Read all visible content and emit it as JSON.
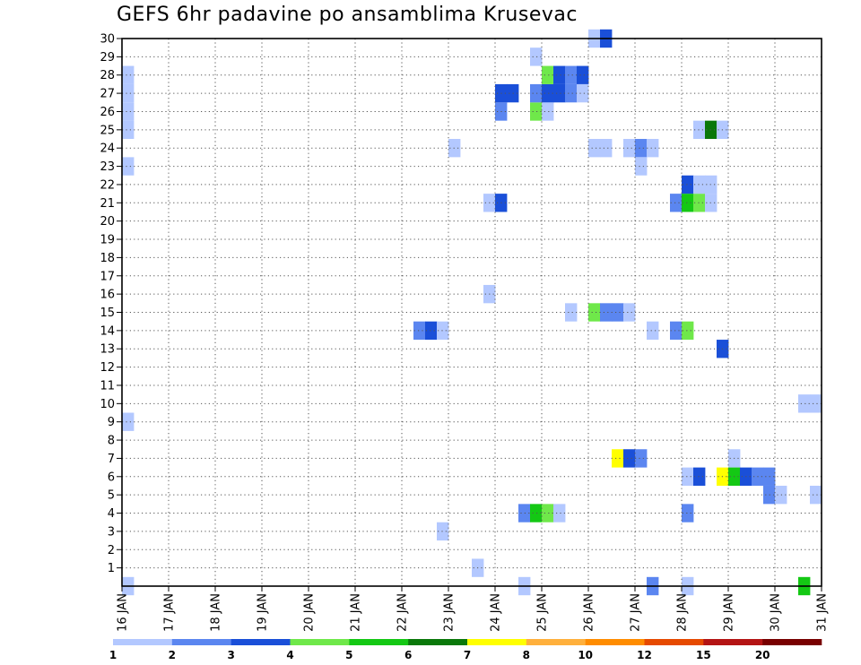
{
  "chart_data": {
    "type": "heatmap",
    "title": "GEFS 6hr padavine po ansamblima Krusevac",
    "xlabel": "",
    "ylabel": "",
    "x_ticks": [
      "16 JAN",
      "17 JAN",
      "18 JAN",
      "19 JAN",
      "20 JAN",
      "21 JAN",
      "22 JAN",
      "23 JAN",
      "24 JAN",
      "25 JAN",
      "26 JAN",
      "27 JAN",
      "28 JAN",
      "29 JAN",
      "30 JAN",
      "31 JAN"
    ],
    "xlim": [
      0,
      60
    ],
    "y_ticks": [
      1,
      2,
      3,
      4,
      5,
      6,
      7,
      8,
      9,
      10,
      11,
      12,
      13,
      14,
      15,
      16,
      17,
      18,
      19,
      20,
      21,
      22,
      23,
      24,
      25,
      26,
      27,
      28,
      29,
      30
    ],
    "ylim": [
      0,
      30
    ],
    "x_unit": "6-hour step from 16 JAN 00Z",
    "y_unit": "ensemble member",
    "grid": true,
    "colorbar": {
      "labels": [
        "1",
        "2",
        "3",
        "4",
        "5",
        "6",
        "7",
        "8",
        "10",
        "12",
        "15",
        "20"
      ],
      "colors": [
        "#b3c8ff",
        "#5b86f0",
        "#1a4fd8",
        "#6fe84a",
        "#14c814",
        "#0a780a",
        "#ffff00",
        "#ffb03c",
        "#ff8c00",
        "#e64a00",
        "#b41414",
        "#780000"
      ]
    },
    "cells": [
      {
        "t": 0,
        "m": 0,
        "c": 1
      },
      {
        "t": 0,
        "m": 9,
        "c": 1
      },
      {
        "t": 0,
        "m": 23,
        "c": 1
      },
      {
        "t": 0,
        "m": 25,
        "c": 1
      },
      {
        "t": 0,
        "m": 26,
        "c": 1
      },
      {
        "t": 0,
        "m": 27,
        "c": 1
      },
      {
        "t": 0,
        "m": 28,
        "c": 1
      },
      {
        "t": 25,
        "m": 14,
        "c": 2
      },
      {
        "t": 26,
        "m": 14,
        "c": 3
      },
      {
        "t": 27,
        "m": 14,
        "c": 1
      },
      {
        "t": 27,
        "m": 3,
        "c": 1
      },
      {
        "t": 28,
        "m": 24,
        "c": 1
      },
      {
        "t": 30,
        "m": 1,
        "c": 1
      },
      {
        "t": 31,
        "m": 21,
        "c": 1
      },
      {
        "t": 31,
        "m": 16,
        "c": 1
      },
      {
        "t": 32,
        "m": 21,
        "c": 3
      },
      {
        "t": 32,
        "m": 26,
        "c": 2
      },
      {
        "t": 32,
        "m": 27,
        "c": 3
      },
      {
        "t": 33,
        "m": 27,
        "c": 3
      },
      {
        "t": 34,
        "m": 0,
        "c": 1
      },
      {
        "t": 34,
        "m": 4,
        "c": 2
      },
      {
        "t": 35,
        "m": 4,
        "c": 5
      },
      {
        "t": 36,
        "m": 4,
        "c": 4
      },
      {
        "t": 37,
        "m": 4,
        "c": 1
      },
      {
        "t": 35,
        "m": 26,
        "c": 4
      },
      {
        "t": 36,
        "m": 26,
        "c": 1
      },
      {
        "t": 35,
        "m": 27,
        "c": 2
      },
      {
        "t": 36,
        "m": 27,
        "c": 3
      },
      {
        "t": 37,
        "m": 27,
        "c": 3
      },
      {
        "t": 38,
        "m": 27,
        "c": 2
      },
      {
        "t": 39,
        "m": 27,
        "c": 1
      },
      {
        "t": 36,
        "m": 28,
        "c": 4
      },
      {
        "t": 37,
        "m": 28,
        "c": 3
      },
      {
        "t": 38,
        "m": 28,
        "c": 2
      },
      {
        "t": 39,
        "m": 28,
        "c": 3
      },
      {
        "t": 35,
        "m": 29,
        "c": 1
      },
      {
        "t": 38,
        "m": 15,
        "c": 1
      },
      {
        "t": 40,
        "m": 15,
        "c": 4
      },
      {
        "t": 41,
        "m": 15,
        "c": 2
      },
      {
        "t": 42,
        "m": 15,
        "c": 2
      },
      {
        "t": 43,
        "m": 15,
        "c": 1
      },
      {
        "t": 40,
        "m": 24,
        "c": 1
      },
      {
        "t": 41,
        "m": 24,
        "c": 1
      },
      {
        "t": 40,
        "m": 30,
        "c": 1
      },
      {
        "t": 41,
        "m": 30,
        "c": 3
      },
      {
        "t": 42,
        "m": 7,
        "c": 7
      },
      {
        "t": 43,
        "m": 7,
        "c": 3
      },
      {
        "t": 44,
        "m": 7,
        "c": 2
      },
      {
        "t": 43,
        "m": 24,
        "c": 1
      },
      {
        "t": 44,
        "m": 24,
        "c": 2
      },
      {
        "t": 45,
        "m": 24,
        "c": 1
      },
      {
        "t": 44,
        "m": 23,
        "c": 1
      },
      {
        "t": 45,
        "m": 14,
        "c": 1
      },
      {
        "t": 45,
        "m": 0,
        "c": 2
      },
      {
        "t": 47,
        "m": 14,
        "c": 2
      },
      {
        "t": 48,
        "m": 14,
        "c": 4
      },
      {
        "t": 48,
        "m": 4,
        "c": 2
      },
      {
        "t": 48,
        "m": 6,
        "c": 1
      },
      {
        "t": 48,
        "m": 0,
        "c": 1
      },
      {
        "t": 47,
        "m": 21,
        "c": 2
      },
      {
        "t": 48,
        "m": 21,
        "c": 5
      },
      {
        "t": 49,
        "m": 21,
        "c": 4
      },
      {
        "t": 50,
        "m": 21,
        "c": 1
      },
      {
        "t": 48,
        "m": 22,
        "c": 3
      },
      {
        "t": 49,
        "m": 22,
        "c": 1
      },
      {
        "t": 50,
        "m": 22,
        "c": 1
      },
      {
        "t": 49,
        "m": 25,
        "c": 1
      },
      {
        "t": 50,
        "m": 25,
        "c": 6
      },
      {
        "t": 51,
        "m": 25,
        "c": 1
      },
      {
        "t": 49,
        "m": 6,
        "c": 3
      },
      {
        "t": 51,
        "m": 13,
        "c": 3
      },
      {
        "t": 52,
        "m": 7,
        "c": 1
      },
      {
        "t": 51,
        "m": 6,
        "c": 7
      },
      {
        "t": 52,
        "m": 6,
        "c": 5
      },
      {
        "t": 53,
        "m": 6,
        "c": 3
      },
      {
        "t": 54,
        "m": 6,
        "c": 2
      },
      {
        "t": 55,
        "m": 6,
        "c": 2
      },
      {
        "t": 55,
        "m": 5,
        "c": 2
      },
      {
        "t": 56,
        "m": 5,
        "c": 1
      },
      {
        "t": 59,
        "m": 5,
        "c": 1
      },
      {
        "t": 58,
        "m": 10,
        "c": 1
      },
      {
        "t": 59,
        "m": 10,
        "c": 1
      },
      {
        "t": 58,
        "m": 0,
        "c": 5
      }
    ]
  }
}
